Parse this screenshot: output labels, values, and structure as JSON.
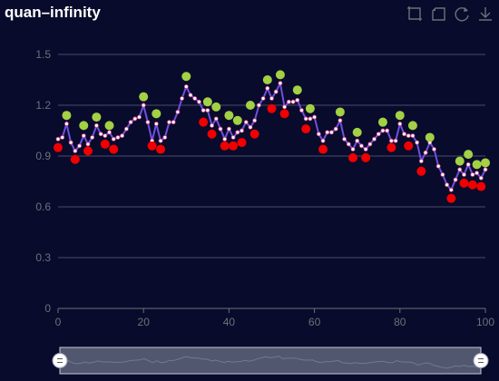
{
  "chart_data": {
    "type": "line",
    "title": "quan–infinity",
    "xlabel": "",
    "ylabel": "",
    "xlim": [
      0,
      100
    ],
    "ylim": [
      0,
      1.5
    ],
    "x_ticks": [
      "0",
      "20",
      "40",
      "60",
      "80",
      "100"
    ],
    "y_ticks": [
      "0",
      "0.3",
      "0.6",
      "0.9",
      "1.2",
      "1.5"
    ],
    "grid": {
      "horizontal": true,
      "vertical": false
    },
    "series": [
      {
        "values": [
          1.0,
          1.01,
          1.09,
          0.98,
          0.93,
          0.96,
          1.02,
          0.97,
          1.01,
          1.08,
          1.03,
          1.02,
          1.04,
          1.0,
          1.01,
          1.02,
          1.06,
          1.1,
          1.12,
          1.13,
          1.2,
          1.1,
          0.99,
          1.09,
          0.99,
          1.01,
          1.1,
          1.1,
          1.16,
          1.24,
          1.31,
          1.26,
          1.24,
          1.22,
          1.17,
          1.17,
          1.08,
          1.12,
          1.06,
          1.0,
          1.06,
          1.01,
          1.04,
          1.05,
          1.1,
          1.07,
          1.11,
          1.2,
          1.24,
          1.3,
          1.24,
          1.28,
          1.33,
          1.19,
          1.22,
          1.22,
          1.23,
          1.17,
          1.12,
          1.12,
          1.13,
          1.03,
          0.99,
          1.04,
          1.04,
          1.06,
          1.11,
          1.0,
          0.97,
          0.94,
          0.99,
          0.96,
          0.94,
          0.97,
          1.0,
          1.03,
          1.05,
          1.05,
          0.99,
          0.99,
          1.09,
          1.03,
          1.02,
          1.02,
          0.98,
          0.87,
          0.92,
          0.98,
          0.94,
          0.84,
          0.79,
          0.73,
          0.7,
          0.76,
          0.82,
          0.79,
          0.85,
          0.79,
          0.8,
          0.77,
          0.82
        ]
      }
    ],
    "markers_high": [
      [
        2,
        1.14
      ],
      [
        6,
        1.08
      ],
      [
        9,
        1.13
      ],
      [
        12,
        1.08
      ],
      [
        20,
        1.25
      ],
      [
        23,
        1.15
      ],
      [
        30,
        1.37
      ],
      [
        35,
        1.22
      ],
      [
        37,
        1.19
      ],
      [
        40,
        1.14
      ],
      [
        42,
        1.11
      ],
      [
        45,
        1.2
      ],
      [
        49,
        1.35
      ],
      [
        52,
        1.38
      ],
      [
        56,
        1.29
      ],
      [
        59,
        1.18
      ],
      [
        66,
        1.16
      ],
      [
        70,
        1.04
      ],
      [
        76,
        1.1
      ],
      [
        80,
        1.14
      ],
      [
        83,
        1.08
      ],
      [
        87,
        1.01
      ],
      [
        94,
        0.87
      ],
      [
        96,
        0.91
      ],
      [
        98,
        0.85
      ],
      [
        100,
        0.86
      ]
    ],
    "markers_low": [
      [
        0,
        0.95
      ],
      [
        4,
        0.88
      ],
      [
        7,
        0.93
      ],
      [
        11,
        0.97
      ],
      [
        13,
        0.94
      ],
      [
        22,
        0.96
      ],
      [
        24,
        0.94
      ],
      [
        34,
        1.1
      ],
      [
        36,
        1.03
      ],
      [
        39,
        0.96
      ],
      [
        41,
        0.96
      ],
      [
        43,
        0.98
      ],
      [
        46,
        1.03
      ],
      [
        50,
        1.18
      ],
      [
        53,
        1.15
      ],
      [
        58,
        1.06
      ],
      [
        62,
        0.94
      ],
      [
        69,
        0.89
      ],
      [
        72,
        0.89
      ],
      [
        78,
        0.95
      ],
      [
        82,
        0.96
      ],
      [
        85,
        0.81
      ],
      [
        92,
        0.65
      ],
      [
        95,
        0.74
      ],
      [
        97,
        0.73
      ],
      [
        99,
        0.72
      ]
    ],
    "colors": {
      "background": "#080b2b",
      "line": "#6f4fe3",
      "point_fill": "#ffffff",
      "point_stroke": "#d4448a",
      "marker_high": "#a3d044",
      "marker_low": "#f00000",
      "grid": "#484b68",
      "axis": "#6e7079",
      "tick_label": "#6e7079",
      "slider_fill": "#6a7187",
      "slider_border": "#c7cbd6"
    }
  },
  "toolbox": {
    "icons": [
      "zoom-icon",
      "zoom-reset-icon",
      "restore-icon",
      "save-image-icon"
    ]
  }
}
